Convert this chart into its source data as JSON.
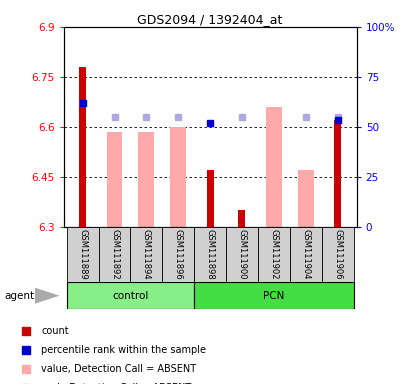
{
  "title": "GDS2094 / 1392404_at",
  "samples": [
    "GSM111889",
    "GSM111892",
    "GSM111894",
    "GSM111896",
    "GSM111898",
    "GSM111900",
    "GSM111902",
    "GSM111904",
    "GSM111906"
  ],
  "ylim_left": [
    6.3,
    6.9
  ],
  "ylim_right": [
    0,
    100
  ],
  "yticks_left": [
    6.3,
    6.45,
    6.6,
    6.75,
    6.9
  ],
  "yticks_right": [
    0,
    25,
    50,
    75,
    100
  ],
  "count_values": [
    6.78,
    null,
    null,
    null,
    6.47,
    6.35,
    null,
    null,
    6.62
  ],
  "rank_values": [
    6.67,
    null,
    null,
    null,
    6.61,
    null,
    null,
    null,
    6.62
  ],
  "absent_value_bars": [
    null,
    6.585,
    6.585,
    6.598,
    null,
    null,
    6.66,
    6.47,
    null
  ],
  "absent_rank_dots": [
    null,
    6.63,
    6.63,
    6.63,
    null,
    6.63,
    null,
    6.63,
    6.63
  ],
  "color_count": "#cc0000",
  "color_rank": "#0000cc",
  "color_absent_bar": "#ffaaaa",
  "color_absent_dot": "#aaaadd",
  "legend_labels": [
    "count",
    "percentile rank within the sample",
    "value, Detection Call = ABSENT",
    "rank, Detection Call = ABSENT"
  ],
  "legend_colors": [
    "#cc0000",
    "#0000cc",
    "#ffaaaa",
    "#aaaadd"
  ]
}
